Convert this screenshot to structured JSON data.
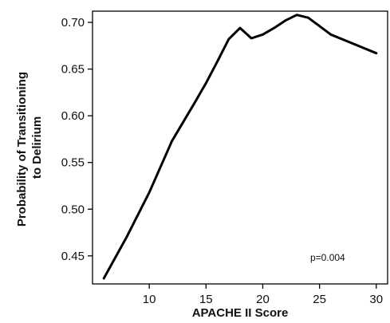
{
  "chart_data": {
    "type": "line",
    "xlabel": "APACHE II Score",
    "ylabel_lines": [
      "Probability of Transitioning",
      "to Delirium"
    ],
    "xlim": [
      5,
      31
    ],
    "ylim": [
      0.42,
      0.712
    ],
    "xticks": [
      10,
      15,
      20,
      25,
      30
    ],
    "yticks": [
      0.45,
      0.5,
      0.55,
      0.6,
      0.65,
      0.7
    ],
    "ytick_labels": [
      "0.45",
      "0.50",
      "0.55",
      "0.60",
      "0.65",
      "0.70"
    ],
    "grid": false,
    "annotation": "p=0.004",
    "series": [
      {
        "x": [
          6,
          8,
          10,
          12,
          14,
          15,
          16,
          17,
          18,
          19,
          20,
          21,
          22,
          23,
          24,
          25,
          26,
          28,
          30
        ],
        "y": [
          0.426,
          0.47,
          0.518,
          0.573,
          0.614,
          0.635,
          0.658,
          0.682,
          0.694,
          0.683,
          0.687,
          0.694,
          0.702,
          0.708,
          0.705,
          0.696,
          0.687,
          0.677,
          0.667
        ],
        "color": "#000000"
      }
    ]
  }
}
